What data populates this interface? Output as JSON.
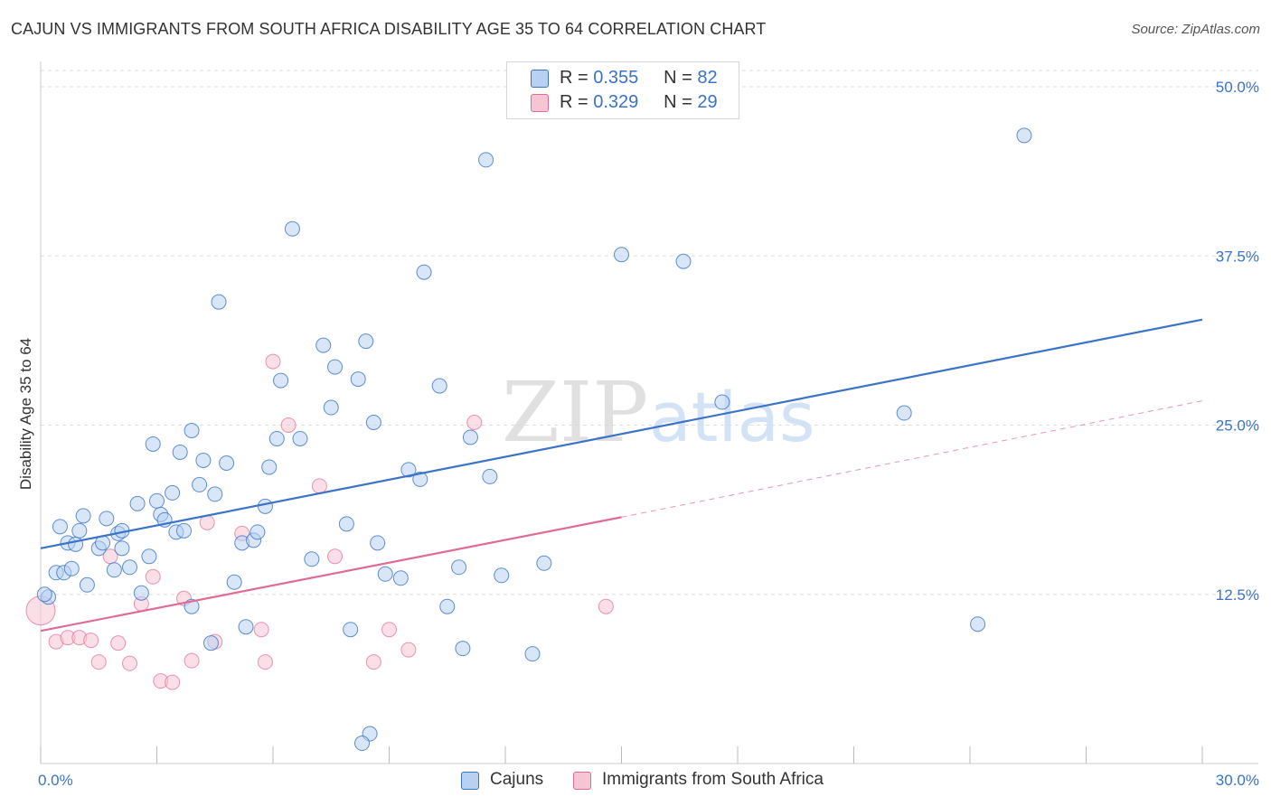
{
  "header": {
    "title": "CAJUN VS IMMIGRANTS FROM SOUTH AFRICA DISABILITY AGE 35 TO 64 CORRELATION CHART",
    "source": "Source: ZipAtlas.com"
  },
  "watermark": {
    "zip": "ZIP",
    "atlas": "atlas"
  },
  "legend": {
    "cajuns": {
      "r_label": "R =",
      "r_value": "0.355",
      "n_label": "N =",
      "n_value": "82"
    },
    "immigrants": {
      "r_label": "R =",
      "r_value": "0.329",
      "n_label": "N =",
      "n_value": "29"
    }
  },
  "bottom_legend": {
    "cajuns": "Cajuns",
    "immigrants": "Immigrants from South Africa"
  },
  "chart_data": {
    "type": "scatter",
    "title": "CAJUN VS IMMIGRANTS FROM SOUTH AFRICA DISABILITY AGE 35 TO 64 CORRELATION CHART",
    "xlabel": "",
    "ylabel": "Disability Age 35 to 64",
    "xlim": [
      0,
      30
    ],
    "ylim": [
      0,
      50
    ],
    "x_tick_labels": [
      "0.0%",
      "30.0%"
    ],
    "y_ticks": [
      12.5,
      25.0,
      37.5,
      50.0
    ],
    "y_tick_labels": [
      "12.5%",
      "25.0%",
      "37.5%",
      "50.0%"
    ],
    "grid": true,
    "colors": {
      "cajuns": "#3b73c8",
      "cajuns_fill": "#b8d1f3",
      "immigrants": "#e06b94",
      "immigrants_fill": "#f6c5d4"
    },
    "series": [
      {
        "name": "Cajuns",
        "trend": {
          "x": [
            0,
            30
          ],
          "y": [
            15.9,
            32.8
          ]
        },
        "points": [
          [
            0.2,
            12.3
          ],
          [
            0.4,
            14.1
          ],
          [
            0.5,
            17.5
          ],
          [
            0.6,
            14.1
          ],
          [
            0.7,
            16.3
          ],
          [
            0.8,
            14.4
          ],
          [
            0.9,
            16.2
          ],
          [
            1.0,
            17.2
          ],
          [
            1.1,
            18.3
          ],
          [
            1.2,
            13.2
          ],
          [
            1.5,
            15.9
          ],
          [
            1.6,
            16.3
          ],
          [
            1.7,
            18.1
          ],
          [
            1.9,
            14.3
          ],
          [
            2.0,
            17.0
          ],
          [
            2.1,
            17.2
          ],
          [
            2.1,
            15.9
          ],
          [
            2.3,
            14.5
          ],
          [
            2.5,
            19.2
          ],
          [
            2.6,
            12.6
          ],
          [
            2.8,
            15.3
          ],
          [
            2.9,
            23.6
          ],
          [
            3.0,
            19.4
          ],
          [
            3.1,
            18.4
          ],
          [
            3.2,
            18.0
          ],
          [
            3.4,
            20.0
          ],
          [
            3.5,
            17.1
          ],
          [
            3.6,
            23.0
          ],
          [
            3.7,
            17.2
          ],
          [
            3.9,
            24.6
          ],
          [
            3.9,
            11.6
          ],
          [
            4.1,
            20.6
          ],
          [
            4.2,
            22.4
          ],
          [
            4.4,
            8.9
          ],
          [
            4.5,
            19.9
          ],
          [
            4.6,
            34.1
          ],
          [
            4.8,
            22.2
          ],
          [
            5.0,
            13.4
          ],
          [
            5.2,
            16.3
          ],
          [
            5.3,
            10.1
          ],
          [
            5.5,
            16.5
          ],
          [
            5.6,
            17.1
          ],
          [
            5.8,
            19.0
          ],
          [
            5.9,
            21.9
          ],
          [
            6.1,
            24.0
          ],
          [
            6.2,
            28.3
          ],
          [
            6.5,
            39.5
          ],
          [
            6.7,
            24.0
          ],
          [
            7.0,
            15.1
          ],
          [
            7.3,
            30.9
          ],
          [
            7.5,
            26.3
          ],
          [
            7.6,
            29.3
          ],
          [
            7.9,
            17.7
          ],
          [
            8.0,
            9.9
          ],
          [
            8.2,
            28.4
          ],
          [
            8.4,
            31.2
          ],
          [
            8.6,
            25.2
          ],
          [
            8.7,
            16.3
          ],
          [
            8.9,
            14.0
          ],
          [
            9.3,
            13.7
          ],
          [
            9.5,
            21.7
          ],
          [
            9.8,
            21.0
          ],
          [
            9.9,
            36.3
          ],
          [
            10.3,
            27.9
          ],
          [
            10.5,
            11.6
          ],
          [
            10.8,
            14.5
          ],
          [
            10.9,
            8.5
          ],
          [
            11.1,
            24.1
          ],
          [
            11.5,
            44.6
          ],
          [
            11.6,
            21.2
          ],
          [
            11.9,
            13.9
          ],
          [
            12.7,
            8.1
          ],
          [
            13.0,
            14.8
          ],
          [
            15.0,
            37.6
          ],
          [
            16.6,
            37.1
          ],
          [
            17.6,
            26.7
          ],
          [
            22.3,
            25.9
          ],
          [
            24.2,
            10.3
          ],
          [
            25.4,
            46.4
          ],
          [
            8.5,
            2.2
          ],
          [
            8.3,
            1.5
          ],
          [
            0.1,
            12.5
          ]
        ]
      },
      {
        "name": "Immigrants from South Africa",
        "trend": {
          "x": [
            0,
            15
          ],
          "y": [
            9.8,
            18.2
          ]
        },
        "trend_dashed": {
          "x": [
            15,
            30
          ],
          "y": [
            18.2,
            26.8
          ]
        },
        "points": [
          [
            0.0,
            11.3
          ],
          [
            0.4,
            9.0
          ],
          [
            0.7,
            9.3
          ],
          [
            1.0,
            9.3
          ],
          [
            1.3,
            9.1
          ],
          [
            1.5,
            7.5
          ],
          [
            1.8,
            15.3
          ],
          [
            2.0,
            8.9
          ],
          [
            2.3,
            7.4
          ],
          [
            2.6,
            11.8
          ],
          [
            2.9,
            13.8
          ],
          [
            3.1,
            6.1
          ],
          [
            3.4,
            6.0
          ],
          [
            3.7,
            12.2
          ],
          [
            3.9,
            7.6
          ],
          [
            4.3,
            17.8
          ],
          [
            4.5,
            9.0
          ],
          [
            5.2,
            17.0
          ],
          [
            5.7,
            9.9
          ],
          [
            5.8,
            7.5
          ],
          [
            6.0,
            29.7
          ],
          [
            6.4,
            25.0
          ],
          [
            7.2,
            20.5
          ],
          [
            7.6,
            15.3
          ],
          [
            8.6,
            7.5
          ],
          [
            9.0,
            9.9
          ],
          [
            9.5,
            8.4
          ],
          [
            11.2,
            25.2
          ],
          [
            14.6,
            11.6
          ]
        ]
      }
    ]
  }
}
